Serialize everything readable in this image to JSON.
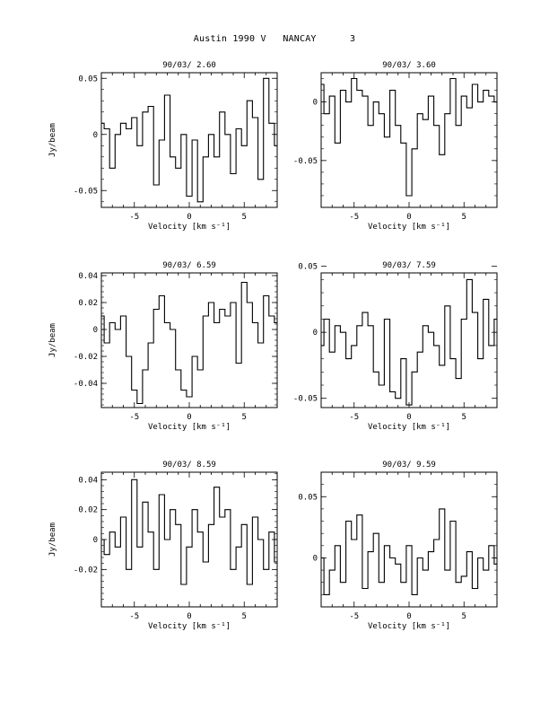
{
  "page": {
    "title": "Austin 1990 V   NANCAY      3"
  },
  "chart_data": [
    {
      "type": "line",
      "title": "90/03/ 2.60",
      "xlabel": "Velocity [km s⁻¹]",
      "ylabel": "Jy/beam",
      "xlim": [
        -8,
        8
      ],
      "ylim": [
        -0.065,
        0.055
      ],
      "xticks": [
        -5,
        0,
        5
      ],
      "xtick_labels": [
        "-5",
        "0",
        "5"
      ],
      "yticks": [
        0.05,
        0,
        -0.05
      ],
      "ytick_labels": [
        "0.05",
        "0",
        "-0.05"
      ],
      "grid": false,
      "series": [
        {
          "x": [
            -8.0,
            -7.5,
            -7.0,
            -6.5,
            -6.0,
            -5.5,
            -5.0,
            -4.5,
            -4.0,
            -3.5,
            -3.0,
            -2.5,
            -2.0,
            -1.5,
            -1.0,
            -0.5,
            0.0,
            0.5,
            1.0,
            1.5,
            2.0,
            2.5,
            3.0,
            3.5,
            4.0,
            4.5,
            5.0,
            5.5,
            6.0,
            6.5,
            7.0,
            7.5,
            8.0
          ],
          "y": [
            0.01,
            0.005,
            -0.03,
            0.0,
            0.01,
            0.005,
            0.015,
            -0.01,
            0.02,
            0.025,
            -0.045,
            -0.005,
            0.035,
            -0.02,
            -0.03,
            0.0,
            -0.055,
            -0.005,
            -0.06,
            -0.02,
            0.0,
            -0.02,
            0.02,
            0.0,
            -0.035,
            0.005,
            -0.01,
            0.03,
            0.015,
            -0.04,
            0.05,
            0.01,
            -0.01
          ]
        }
      ]
    },
    {
      "type": "line",
      "title": "90/03/ 3.60",
      "xlabel": "Velocity [km s⁻¹]",
      "ylabel": "",
      "xlim": [
        -8,
        8
      ],
      "ylim": [
        -0.09,
        0.025
      ],
      "xticks": [
        -5,
        0,
        5
      ],
      "xtick_labels": [
        "-5",
        "0",
        "5"
      ],
      "yticks": [
        0,
        -0.05
      ],
      "ytick_labels": [
        "0",
        "-0.05"
      ],
      "grid": false,
      "series": [
        {
          "x": [
            -8.0,
            -7.5,
            -7.0,
            -6.5,
            -6.0,
            -5.5,
            -5.0,
            -4.5,
            -4.0,
            -3.5,
            -3.0,
            -2.5,
            -2.0,
            -1.5,
            -1.0,
            -0.5,
            0.0,
            0.5,
            1.0,
            1.5,
            2.0,
            2.5,
            3.0,
            3.5,
            4.0,
            4.5,
            5.0,
            5.5,
            6.0,
            6.5,
            7.0,
            7.5,
            8.0
          ],
          "y": [
            0.015,
            -0.01,
            0.005,
            -0.035,
            0.01,
            0.0,
            0.02,
            0.01,
            0.005,
            -0.02,
            0.0,
            -0.01,
            -0.03,
            0.01,
            -0.02,
            -0.035,
            -0.08,
            -0.04,
            -0.01,
            -0.015,
            0.005,
            -0.02,
            -0.045,
            -0.01,
            0.02,
            -0.02,
            0.005,
            -0.005,
            0.015,
            0.0,
            0.01,
            0.005,
            0.0
          ]
        }
      ]
    },
    {
      "type": "line",
      "title": "90/03/ 6.59",
      "xlabel": "Velocity [km s⁻¹]",
      "ylabel": "Jy/beam",
      "xlim": [
        -8,
        8
      ],
      "ylim": [
        -0.058,
        0.042
      ],
      "xticks": [
        -5,
        0,
        5
      ],
      "xtick_labels": [
        "-5",
        "0",
        "5"
      ],
      "yticks": [
        0.04,
        0.02,
        0,
        -0.02,
        -0.04
      ],
      "ytick_labels": [
        "0.04",
        "0.02",
        "0",
        "-0.02",
        "-0.04"
      ],
      "grid": false,
      "series": [
        {
          "x": [
            -8.0,
            -7.5,
            -7.0,
            -6.5,
            -6.0,
            -5.5,
            -5.0,
            -4.5,
            -4.0,
            -3.5,
            -3.0,
            -2.5,
            -2.0,
            -1.5,
            -1.0,
            -0.5,
            0.0,
            0.5,
            1.0,
            1.5,
            2.0,
            2.5,
            3.0,
            3.5,
            4.0,
            4.5,
            5.0,
            5.5,
            6.0,
            6.5,
            7.0,
            7.5,
            8.0
          ],
          "y": [
            0.01,
            -0.01,
            0.005,
            0.0,
            0.01,
            -0.02,
            -0.045,
            -0.055,
            -0.03,
            -0.01,
            0.015,
            0.025,
            0.005,
            0.0,
            -0.03,
            -0.045,
            -0.05,
            -0.02,
            -0.03,
            0.01,
            0.02,
            0.005,
            0.015,
            0.01,
            0.02,
            -0.025,
            0.035,
            0.02,
            0.005,
            -0.01,
            0.025,
            0.01,
            0.005
          ]
        }
      ]
    },
    {
      "type": "line",
      "title": "90/03/ 7.59",
      "xlabel": "Velocity [km s⁻¹]",
      "ylabel": "",
      "xlim": [
        -8,
        8
      ],
      "ylim": [
        -0.057,
        0.045
      ],
      "xticks": [
        -5,
        0,
        5
      ],
      "xtick_labels": [
        "-5",
        "0",
        "5"
      ],
      "yticks": [
        0.05,
        0,
        -0.05
      ],
      "ytick_labels": [
        "0.05",
        "0",
        "-0.05"
      ],
      "grid": false,
      "series": [
        {
          "x": [
            -8.0,
            -7.5,
            -7.0,
            -6.5,
            -6.0,
            -5.5,
            -5.0,
            -4.5,
            -4.0,
            -3.5,
            -3.0,
            -2.5,
            -2.0,
            -1.5,
            -1.0,
            -0.5,
            0.0,
            0.5,
            1.0,
            1.5,
            2.0,
            2.5,
            3.0,
            3.5,
            4.0,
            4.5,
            5.0,
            5.5,
            6.0,
            6.5,
            7.0,
            7.5,
            8.0
          ],
          "y": [
            -0.01,
            0.01,
            -0.015,
            0.005,
            0.0,
            -0.02,
            -0.01,
            0.005,
            0.015,
            0.005,
            -0.03,
            -0.04,
            0.01,
            -0.045,
            -0.05,
            -0.02,
            -0.055,
            -0.03,
            -0.015,
            0.005,
            0.0,
            -0.01,
            -0.025,
            0.02,
            -0.02,
            -0.035,
            0.01,
            0.04,
            0.015,
            -0.02,
            0.025,
            -0.01,
            0.01
          ]
        }
      ]
    },
    {
      "type": "line",
      "title": "90/03/ 8.59",
      "xlabel": "Velocity [km s⁻¹]",
      "ylabel": "Jy/beam",
      "xlim": [
        -8,
        8
      ],
      "ylim": [
        -0.045,
        0.045
      ],
      "xticks": [
        -5,
        0,
        5
      ],
      "xtick_labels": [
        "-5",
        "0",
        "5"
      ],
      "yticks": [
        0.04,
        0.02,
        0,
        -0.02
      ],
      "ytick_labels": [
        "0.04",
        "0.02",
        "0",
        "-0.02"
      ],
      "grid": false,
      "series": [
        {
          "x": [
            -8.0,
            -7.5,
            -7.0,
            -6.5,
            -6.0,
            -5.5,
            -5.0,
            -4.5,
            -4.0,
            -3.5,
            -3.0,
            -2.5,
            -2.0,
            -1.5,
            -1.0,
            -0.5,
            0.0,
            0.5,
            1.0,
            1.5,
            2.0,
            2.5,
            3.0,
            3.5,
            4.0,
            4.5,
            5.0,
            5.5,
            6.0,
            6.5,
            7.0,
            7.5,
            8.0
          ],
          "y": [
            0.0,
            -0.01,
            0.005,
            -0.005,
            0.015,
            -0.02,
            0.04,
            -0.005,
            0.025,
            0.005,
            -0.02,
            0.03,
            0.0,
            0.02,
            0.01,
            -0.03,
            -0.005,
            0.02,
            0.005,
            -0.015,
            0.01,
            0.035,
            0.015,
            0.02,
            -0.02,
            -0.005,
            0.01,
            -0.03,
            0.015,
            0.0,
            -0.02,
            0.005,
            -0.015
          ]
        }
      ]
    },
    {
      "type": "line",
      "title": "90/03/ 9.59",
      "xlabel": "Velocity [km s⁻¹]",
      "ylabel": "",
      "xlim": [
        -8,
        8
      ],
      "ylim": [
        -0.04,
        0.07
      ],
      "xticks": [
        -5,
        0,
        5
      ],
      "xtick_labels": [
        "-5",
        "0",
        "5"
      ],
      "yticks": [
        0.05,
        0
      ],
      "ytick_labels": [
        "0.05",
        "0"
      ],
      "grid": false,
      "series": [
        {
          "x": [
            -8.0,
            -7.5,
            -7.0,
            -6.5,
            -6.0,
            -5.5,
            -5.0,
            -4.5,
            -4.0,
            -3.5,
            -3.0,
            -2.5,
            -2.0,
            -1.5,
            -1.0,
            -0.5,
            0.0,
            0.5,
            1.0,
            1.5,
            2.0,
            2.5,
            3.0,
            3.5,
            4.0,
            4.5,
            5.0,
            5.5,
            6.0,
            6.5,
            7.0,
            7.5,
            8.0
          ],
          "y": [
            0.0,
            -0.03,
            -0.01,
            0.01,
            -0.02,
            0.03,
            0.015,
            0.035,
            -0.025,
            0.005,
            0.02,
            -0.02,
            0.01,
            0.0,
            -0.005,
            -0.02,
            0.01,
            -0.03,
            0.0,
            -0.01,
            0.005,
            0.015,
            0.04,
            -0.01,
            0.03,
            -0.02,
            -0.015,
            0.005,
            -0.025,
            0.0,
            -0.01,
            0.01,
            -0.005
          ]
        }
      ]
    }
  ]
}
